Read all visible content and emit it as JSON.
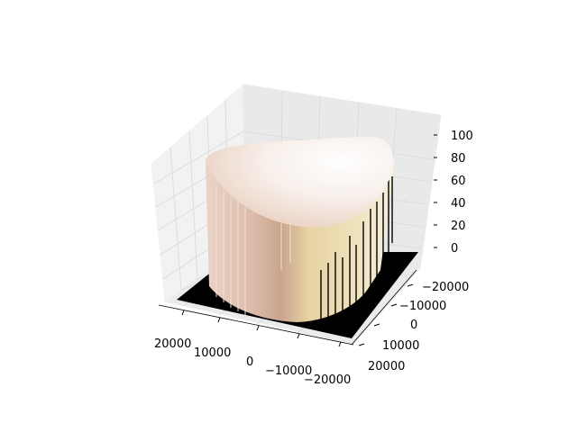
{
  "chart_data": {
    "type": "surface3d",
    "title": "",
    "xlabel": "",
    "ylabel": "",
    "zlabel": "",
    "x_ticks": [
      "20000",
      "10000",
      "0",
      "−10000",
      "−20000"
    ],
    "y_ticks": [
      "−20000",
      "−10000",
      "0",
      "10000",
      "20000"
    ],
    "z_ticks": [
      "0",
      "20",
      "40",
      "60",
      "80",
      "100"
    ],
    "xlim": [
      -25000,
      25000
    ],
    "ylim": [
      -25000,
      25000
    ],
    "zlim": [
      0,
      110
    ],
    "surface": {
      "shape": "flat-topped disk-like plateau on a zero floor",
      "top_z": 100,
      "floor_z": 0,
      "colormap": "pink"
    },
    "grid": true,
    "colors": {
      "pane": "#f2f2f2",
      "grid": "#dcdcdc",
      "floor": "#000000",
      "top": "#ffffff",
      "wall_light": "#e8d8a8",
      "wall_dark": "#c9a592"
    }
  }
}
